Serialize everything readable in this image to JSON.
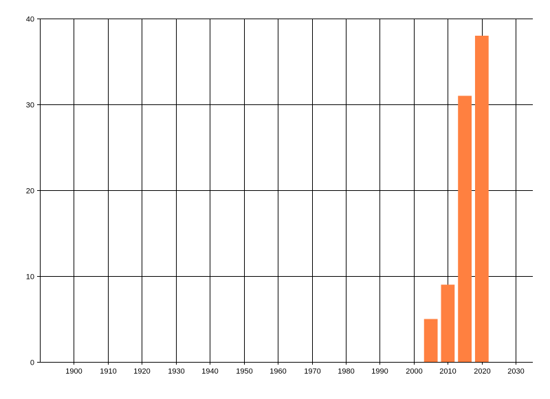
{
  "chart_data": {
    "type": "bar",
    "title": "",
    "xlabel": "",
    "ylabel": "",
    "x": [
      2005,
      2010,
      2015,
      2020
    ],
    "values": [
      5,
      9,
      31,
      38
    ],
    "bar_width_years": 4,
    "xlim": [
      1890,
      2035
    ],
    "ylim": [
      0,
      40
    ],
    "xticks": [
      1900,
      1910,
      1920,
      1930,
      1940,
      1950,
      1960,
      1970,
      1980,
      1990,
      2000,
      2010,
      2020,
      2030
    ],
    "yticks": [
      0,
      10,
      20,
      30,
      40
    ],
    "grid": true,
    "legend": "none",
    "colors": {
      "bar": "#FF8040",
      "grid": "#000000"
    }
  }
}
